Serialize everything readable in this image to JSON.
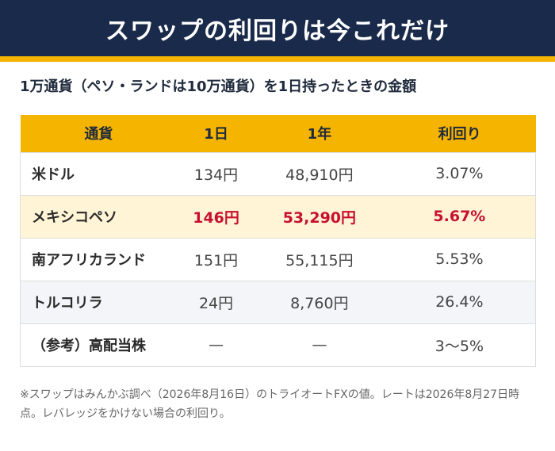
{
  "header": {
    "title": "スワップの利回りは今これだけ",
    "colors": {
      "background": "#1a2a4a",
      "accent": "#f5b400",
      "highlight_text": "#c8102e",
      "highlight_row": "#fff4d6"
    }
  },
  "subtitle": "1万通貨（ペソ・ランドは10万通貨）を1日持ったときの金額",
  "table": {
    "headers": [
      "通貨",
      "1日",
      "1年",
      "利回り"
    ],
    "rows": [
      {
        "name": "米ドル",
        "day": "134円",
        "year": "48,910円",
        "rate": "3.07%"
      },
      {
        "name": "メキシコペソ",
        "day": "146円",
        "year": "53,290円",
        "rate": "5.67%"
      },
      {
        "name": "南アフリカランド",
        "day": "151円",
        "year": "55,115円",
        "rate": "5.53%"
      },
      {
        "name": "トルコリラ",
        "day": "24円",
        "year": "8,760円",
        "rate": "26.4%"
      },
      {
        "name": "（参考）高配当株",
        "day": "—",
        "year": "—",
        "rate": "3〜5%"
      }
    ]
  },
  "footnote": "※スワップはみんかぶ調べ（2026年8月16日）のトライオートFXの値。レートは2026年8月27日時点。レバレッジをかけない場合の利回り。"
}
